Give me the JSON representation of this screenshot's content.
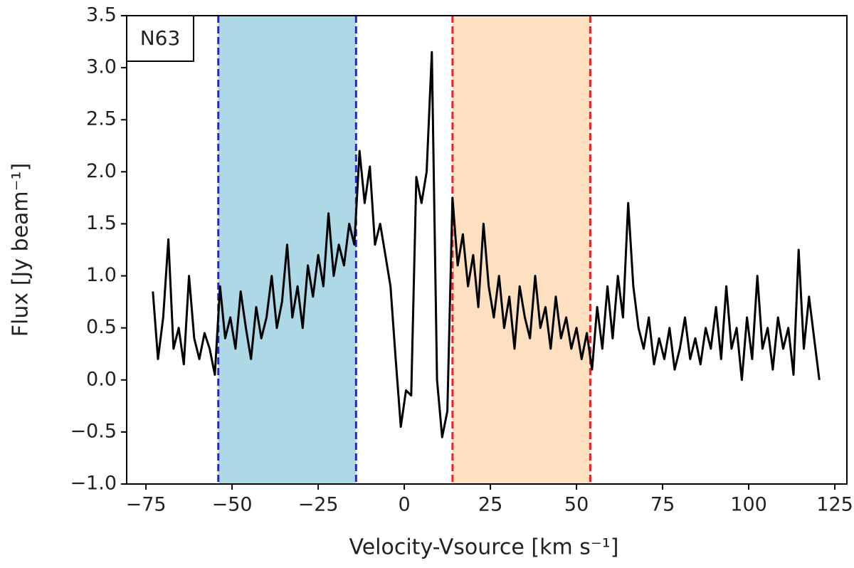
{
  "chart_data": {
    "type": "line",
    "xlabel": "Velocity-Vsource [km s⁻¹]",
    "ylabel": "Flux [Jy beam⁻¹]",
    "annotation": "N63",
    "color": "#000000",
    "x": [
      -73,
      -71.5,
      -70,
      -68.5,
      -67,
      -65.5,
      -64,
      -62.5,
      -61,
      -59.5,
      -58,
      -56.5,
      -55,
      -53.5,
      -52,
      -50.5,
      -49,
      -47.5,
      -46,
      -44.5,
      -43,
      -41.5,
      -40,
      -38.5,
      -37,
      -35.5,
      -34,
      -32.5,
      -31,
      -29.5,
      -28,
      -26.5,
      -25,
      -23.5,
      -22,
      -20.5,
      -19,
      -17.5,
      -16,
      -14.5,
      -13,
      -11.5,
      -10,
      -8.5,
      -7,
      -5.5,
      -4,
      -2.5,
      -1,
      0.5,
      2,
      3.5,
      5,
      6.5,
      8,
      9.5,
      11,
      12.5,
      14,
      15.5,
      17,
      18.5,
      20,
      21.5,
      23,
      24.5,
      26,
      27.5,
      29,
      30.5,
      32,
      33.5,
      35,
      36.5,
      38,
      39.5,
      41,
      42.5,
      44,
      45.5,
      47,
      48.5,
      50,
      51.5,
      53,
      54.5,
      56,
      57.5,
      59,
      60.5,
      62,
      63.5,
      65,
      66.5,
      68,
      69.5,
      71,
      72.5,
      74,
      75.5,
      77,
      78.5,
      80,
      81.5,
      83,
      84.5,
      86,
      87.5,
      89,
      90.5,
      92,
      93.5,
      95,
      96.5,
      98,
      99.5,
      101,
      102.5,
      104,
      105.5,
      107,
      108.5,
      110,
      111.5,
      113,
      114.5,
      116,
      117.5,
      119,
      120.5
    ],
    "values": [
      0.85,
      0.2,
      0.6,
      1.35,
      0.3,
      0.5,
      0.15,
      1.0,
      0.4,
      0.2,
      0.45,
      0.3,
      0.05,
      0.9,
      0.4,
      0.6,
      0.3,
      0.85,
      0.5,
      0.2,
      0.7,
      0.4,
      0.6,
      1.0,
      0.5,
      0.75,
      1.3,
      0.6,
      0.9,
      0.5,
      1.1,
      0.8,
      1.2,
      0.9,
      1.6,
      1.0,
      1.3,
      1.1,
      1.5,
      1.3,
      2.2,
      1.7,
      2.05,
      1.3,
      1.5,
      1.2,
      0.9,
      0.2,
      -0.45,
      -0.1,
      -0.15,
      1.95,
      1.7,
      2.0,
      3.15,
      0.0,
      -0.55,
      -0.3,
      1.75,
      1.1,
      1.4,
      0.9,
      1.2,
      0.7,
      1.5,
      0.9,
      0.6,
      1.0,
      0.5,
      0.8,
      0.3,
      0.9,
      0.6,
      0.4,
      1.0,
      0.5,
      0.7,
      0.3,
      0.8,
      0.4,
      0.6,
      0.3,
      0.5,
      0.2,
      0.45,
      0.1,
      0.7,
      0.3,
      0.9,
      0.4,
      1.0,
      0.6,
      1.7,
      0.9,
      0.5,
      0.3,
      0.6,
      0.15,
      0.4,
      0.2,
      0.5,
      0.1,
      0.3,
      0.6,
      0.2,
      0.4,
      0.15,
      0.5,
      0.3,
      0.7,
      0.2,
      0.9,
      0.3,
      0.5,
      0.0,
      0.6,
      0.2,
      1.0,
      0.3,
      0.5,
      0.1,
      0.6,
      0.3,
      0.5,
      0.05,
      1.25,
      0.3,
      0.8,
      0.4,
      0.0
    ],
    "spans": [
      {
        "xmin": -54,
        "xmax": -14,
        "color": "#add8e6",
        "edge_color": "#2222ee"
      },
      {
        "xmin": 14,
        "xmax": 54,
        "color": "#fde0c0",
        "edge_color": "#ee2222"
      }
    ],
    "xlim": [
      -80.6,
      128.5
    ],
    "ylim": [
      -1.0,
      3.5
    ],
    "xticks": [
      {
        "value": -75,
        "label": "−75"
      },
      {
        "value": -50,
        "label": "−50"
      },
      {
        "value": -25,
        "label": "−25"
      },
      0,
      25,
      50,
      75,
      100,
      125
    ],
    "yticks": [
      {
        "value": -1.0,
        "label": "−1.0"
      },
      {
        "value": -0.5,
        "label": "−0.5"
      },
      {
        "value": 0.0,
        "label": "0.0"
      },
      {
        "value": 0.5,
        "label": "0.5"
      },
      {
        "value": 1.0,
        "label": "1.0"
      },
      {
        "value": 1.5,
        "label": "1.5"
      },
      {
        "value": 2.0,
        "label": "2.0"
      },
      {
        "value": 2.5,
        "label": "2.5"
      },
      {
        "value": 3.0,
        "label": "3.0"
      },
      {
        "value": 3.5,
        "label": "3.5"
      }
    ]
  }
}
